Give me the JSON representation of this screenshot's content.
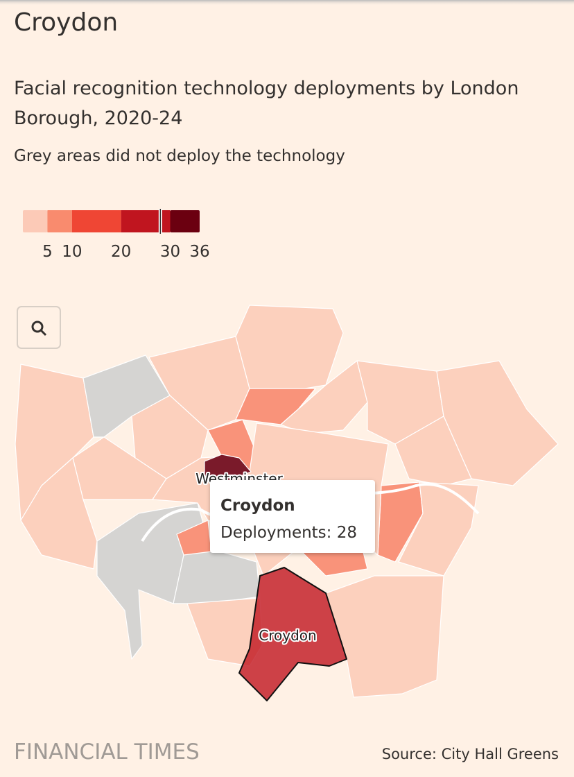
{
  "header": {
    "title": "Croydon"
  },
  "subtitle": "Facial recognition technology deployments by London Borough, 2020-24",
  "note": "Grey areas did not deploy the technology",
  "legend": {
    "lim": [
      0,
      36
    ],
    "ticks": [
      5,
      10,
      20,
      30,
      36
    ],
    "colors": [
      "#fccab7",
      "#f98b6e",
      "#ef4634",
      "#c0151f",
      "#6b0010"
    ],
    "marker": 28
  },
  "map": {
    "labels": [
      "Westminster",
      "Croydon"
    ]
  },
  "tooltip": {
    "title": "Croydon",
    "line": "Deployments: 28"
  },
  "footer": {
    "brand": "FINANCIAL TIMES",
    "source": "Source: City Hall Greens"
  }
}
